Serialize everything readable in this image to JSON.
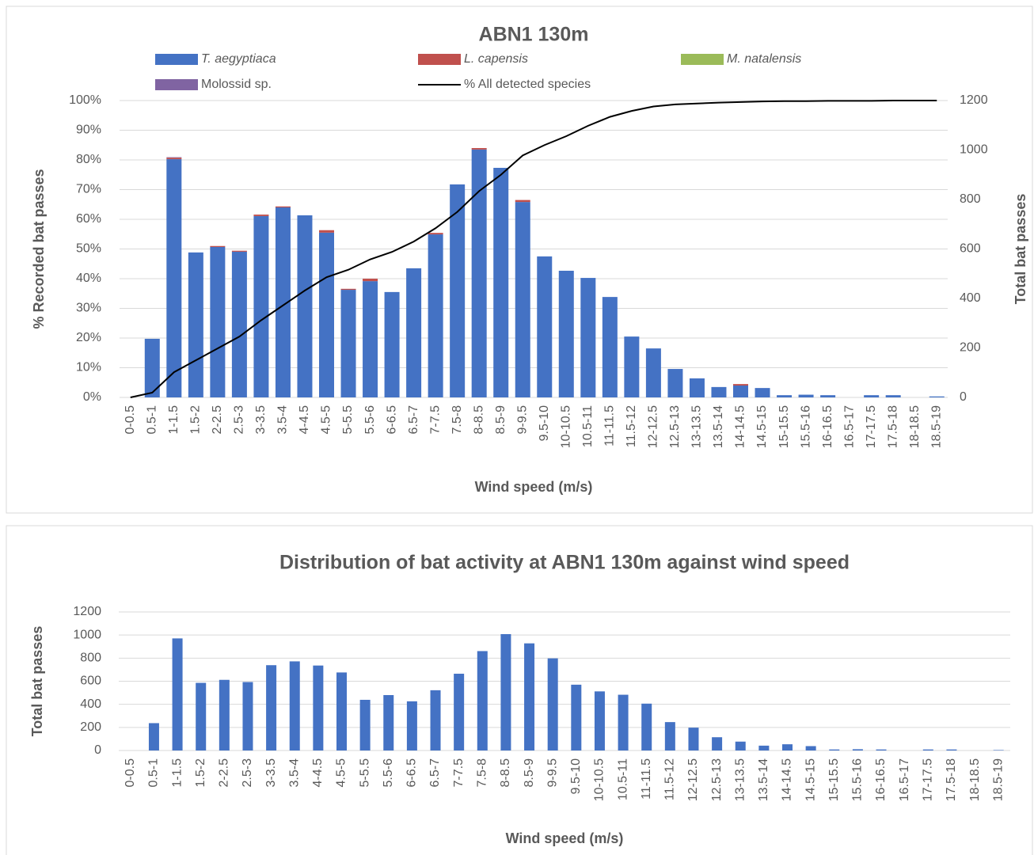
{
  "chart_data": [
    {
      "type": "bar",
      "stacked": true,
      "title": "ABN1 130m",
      "xlabel": "Wind speed (m/s)",
      "ylabel": "% Recorded bat passes",
      "y2label": "Total bat passes",
      "categories": [
        "0-0.5",
        "0.5-1",
        "1-1.5",
        "1.5-2",
        "2-2.5",
        "2.5-3",
        "3-3.5",
        "3.5-4",
        "4-4.5",
        "4.5-5",
        "5-5.5",
        "5.5-6",
        "6-6.5",
        "6.5-7",
        "7-7.5",
        "7.5-8",
        "8-8.5",
        "8.5-9",
        "9-9.5",
        "9.5-10",
        "10-10.5",
        "10.5-11",
        "11-11.5",
        "11.5-12",
        "12-12.5",
        "12.5-13",
        "13-13.5",
        "13.5-14",
        "14-14.5",
        "14.5-15",
        "15-15.5",
        "15.5-16",
        "16-16.5",
        "16.5-17",
        "17-17.5",
        "17.5-18",
        "18-18.5",
        "18.5-19"
      ],
      "series": [
        {
          "name": "T. aegyptiaca",
          "color": "#4472c4",
          "axis": "y2",
          "italic": true,
          "values": [
            0,
            237,
            963,
            586,
            608,
            589,
            733,
            768,
            736,
            666,
            435,
            470,
            426,
            522,
            659,
            861,
            1002,
            928,
            790,
            570,
            512,
            483,
            406,
            246,
            198,
            115,
            77,
            42,
            48,
            38,
            9,
            11,
            9,
            0,
            9,
            9,
            0,
            4
          ]
        },
        {
          "name": "L. capensis",
          "color": "#c0504d",
          "axis": "y2",
          "italic": true,
          "values": [
            0,
            0,
            6,
            0,
            4,
            4,
            6,
            4,
            0,
            10,
            4,
            10,
            0,
            0,
            6,
            0,
            6,
            0,
            8,
            0,
            0,
            0,
            0,
            0,
            0,
            0,
            0,
            0,
            6,
            0,
            0,
            0,
            0,
            0,
            0,
            0,
            0,
            0
          ]
        },
        {
          "name": "M. natalensis",
          "color": "#9bbb59",
          "axis": "y2",
          "italic": true,
          "values": [
            0,
            0,
            0,
            0,
            0,
            0,
            0,
            0,
            0,
            0,
            0,
            0,
            0,
            0,
            0,
            0,
            0,
            0,
            0,
            0,
            0,
            0,
            0,
            0,
            0,
            0,
            0,
            0,
            0,
            0,
            0,
            0,
            0,
            0,
            0,
            0,
            0,
            0
          ]
        },
        {
          "name": "Molossid sp.",
          "color": "#8064a2",
          "axis": "y2",
          "italic": false,
          "values": [
            0,
            0,
            2,
            0,
            0,
            0,
            0,
            0,
            0,
            0,
            0,
            0,
            0,
            0,
            0,
            0,
            0,
            0,
            0,
            0,
            0,
            0,
            0,
            0,
            0,
            0,
            0,
            0,
            0,
            0,
            0,
            0,
            0,
            0,
            0,
            0,
            0,
            0
          ]
        },
        {
          "name": "% All detected species",
          "color": "#000000",
          "type": "line",
          "axis": "y",
          "italic": false,
          "values": [
            0,
            1.6,
            8.5,
            12.5,
            16.5,
            20.5,
            26,
            31,
            36,
            40.5,
            43,
            46.5,
            49,
            52.5,
            57,
            62.5,
            69.5,
            75,
            81.5,
            85,
            88,
            91.5,
            94.5,
            96.5,
            98,
            98.7,
            99,
            99.3,
            99.5,
            99.7,
            99.8,
            99.8,
            99.9,
            99.9,
            99.9,
            100,
            100,
            100
          ]
        }
      ],
      "ylim": [
        0,
        100
      ],
      "yticks": [
        {
          "value": 0,
          "label": "0%"
        },
        {
          "value": 10,
          "label": "10%"
        },
        {
          "value": 20,
          "label": "20%"
        },
        {
          "value": 30,
          "label": "30%"
        },
        {
          "value": 40,
          "label": "40%"
        },
        {
          "value": 50,
          "label": "50%"
        },
        {
          "value": 60,
          "label": "60%"
        },
        {
          "value": 70,
          "label": "70%"
        },
        {
          "value": 80,
          "label": "80%"
        },
        {
          "value": 90,
          "label": "90%"
        },
        {
          "value": 100,
          "label": "100%"
        }
      ],
      "y2lim": [
        0,
        1200
      ],
      "y2ticks": [
        0,
        200,
        400,
        600,
        800,
        1000,
        1200
      ],
      "grid": true,
      "legend": "top"
    },
    {
      "type": "bar",
      "title": "Distribution of bat activity at ABN1 130m against wind speed",
      "xlabel": "Wind speed (m/s)",
      "ylabel": "Total bat passes",
      "color": "#4472c4",
      "categories": [
        "0-0.5",
        "0.5-1",
        "1-1.5",
        "1.5-2",
        "2-2.5",
        "2.5-3",
        "3-3.5",
        "3.5-4",
        "4-4.5",
        "4.5-5",
        "5-5.5",
        "5.5-6",
        "6-6.5",
        "6.5-7",
        "7-7.5",
        "7.5-8",
        "8-8.5",
        "8.5-9",
        "9-9.5",
        "9.5-10",
        "10-10.5",
        "10.5-11",
        "11-11.5",
        "11.5-12",
        "12-12.5",
        "12.5-13",
        "13-13.5",
        "13.5-14",
        "14-14.5",
        "14.5-15",
        "15-15.5",
        "15.5-16",
        "16-16.5",
        "16.5-17",
        "17-17.5",
        "17.5-18",
        "18-18.5",
        "18.5-19"
      ],
      "values": [
        0,
        237,
        971,
        586,
        612,
        593,
        739,
        772,
        736,
        676,
        439,
        480,
        426,
        522,
        665,
        861,
        1008,
        928,
        798,
        570,
        512,
        483,
        406,
        246,
        198,
        115,
        77,
        42,
        54,
        38,
        9,
        11,
        9,
        0,
        9,
        9,
        0,
        4
      ],
      "ylim": [
        0,
        1200
      ],
      "yticks": [
        0,
        200,
        400,
        600,
        800,
        1000,
        1200
      ],
      "grid": true
    }
  ]
}
